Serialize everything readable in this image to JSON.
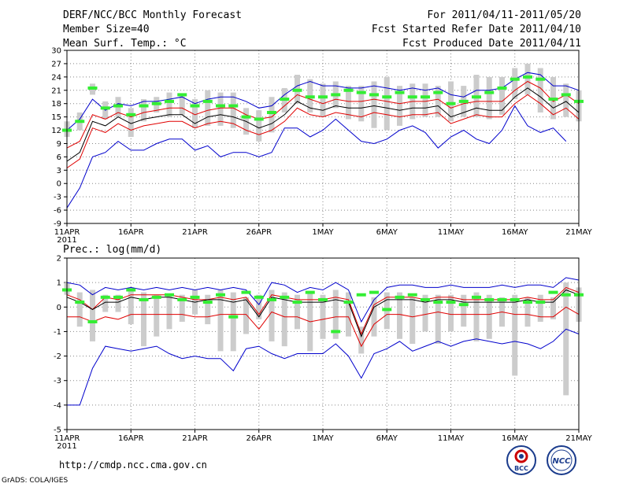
{
  "header": {
    "title": "DERF/NCC/BCC Monthly Forecast",
    "member_size": "Member Size=40",
    "variable1": "Mean Surf. Temp.: °C",
    "for_range": "For 2011/04/11-2011/05/20",
    "fcst_started": "Fcst Started Refer Date 2011/04/10",
    "fcst_produced": "Fcst Produced Date 2011/04/11"
  },
  "footer": {
    "url": "http://cmdp.ncc.cma.gov.cn",
    "grads": "GrADS: COLA/IGES",
    "logo_bcc": "BCC",
    "logo_ncc": "NCC"
  },
  "x_tick_labels": [
    "11APR",
    "16APR",
    "21APR",
    "26APR",
    "1MAY",
    "6MAY",
    "11MAY",
    "16MAY",
    "21MAY"
  ],
  "x_year": "2011",
  "colors": {
    "max_min": "#0000cc",
    "spread": "#e00000",
    "mean": "#000000",
    "obs": "#33ee33",
    "box": "#cccccc"
  },
  "chart_data": [
    {
      "type": "line",
      "title": "Mean Surf. Temp.: °C",
      "xlabel": "",
      "ylabel": "",
      "x_days": 40,
      "ylim": [
        -9,
        30
      ],
      "yticks": [
        -9,
        -6,
        -3,
        0,
        3,
        6,
        9,
        12,
        15,
        18,
        21,
        24,
        27,
        30
      ],
      "series": [
        {
          "name": "max",
          "values": [
            12,
            14.5,
            19,
            16.5,
            18,
            17.5,
            18.5,
            18.5,
            19,
            19.5,
            18,
            19,
            19.5,
            19.5,
            18.5,
            17,
            17.5,
            20,
            22,
            23,
            22,
            22,
            21.5,
            21.5,
            22,
            21.5,
            21,
            21.5,
            21,
            21.5,
            20,
            19.5,
            21,
            21,
            21.5,
            23.5,
            25,
            24.5,
            22,
            22,
            21
          ]
        },
        {
          "name": "upper",
          "values": [
            8,
            9.5,
            15.5,
            14.5,
            16,
            15,
            16,
            16.5,
            17,
            17,
            15.5,
            16.5,
            17,
            17,
            15.5,
            14.5,
            15,
            17.5,
            20,
            19,
            18,
            19,
            18.5,
            18.5,
            19,
            18.5,
            18,
            18.5,
            18.5,
            19,
            17,
            18,
            18.5,
            18.5,
            18.5,
            21,
            23,
            21.5,
            18.5,
            20,
            18
          ]
        },
        {
          "name": "mean",
          "values": [
            5,
            7,
            14,
            13,
            15,
            13.5,
            14.5,
            15,
            15.5,
            15.5,
            13.5,
            15,
            15.5,
            15,
            14,
            12.5,
            13.5,
            15.5,
            18.5,
            17,
            16.5,
            17.5,
            17,
            17,
            17.5,
            17,
            16.5,
            17,
            17,
            17.5,
            15,
            16,
            17,
            16.5,
            16.5,
            19.5,
            21.5,
            19.5,
            17,
            18.5,
            16
          ]
        },
        {
          "name": "lower",
          "values": [
            3.5,
            5.5,
            12.5,
            11.5,
            13.5,
            12,
            13,
            13.5,
            14,
            14,
            12.5,
            13.5,
            14,
            13.5,
            12,
            11,
            12,
            14,
            17,
            15.5,
            15,
            16,
            15.5,
            15,
            16,
            15.5,
            15,
            15.5,
            15.5,
            16,
            13.5,
            14.5,
            15.5,
            15,
            15,
            18,
            20,
            18,
            15.5,
            17,
            14.5
          ]
        },
        {
          "name": "min",
          "values": [
            -5.5,
            -1,
            6,
            7,
            9.5,
            7.5,
            7.5,
            9,
            10,
            10,
            7.5,
            8.5,
            6,
            7,
            7,
            6,
            7,
            12.5,
            12.5,
            10.5,
            12,
            14.5,
            12,
            9.5,
            9,
            10,
            12,
            13,
            11.5,
            8,
            10.5,
            12,
            10,
            9,
            12,
            17.5,
            13,
            11.5,
            12.5,
            9.5
          ]
        }
      ],
      "boxes": [
        [
          10.5,
          14
        ],
        [
          12,
          16
        ],
        [
          20,
          22.5
        ],
        [
          14.5,
          18.5
        ],
        [
          15,
          19.5
        ],
        [
          10.5,
          17
        ],
        [
          14,
          19
        ],
        [
          16,
          19.5
        ],
        [
          15,
          20.5
        ],
        [
          15.5,
          20
        ],
        [
          12.5,
          19
        ],
        [
          13,
          21
        ],
        [
          13,
          20.5
        ],
        [
          12.5,
          20.5
        ],
        [
          11,
          17
        ],
        [
          9.5,
          16.5
        ],
        [
          11.5,
          19.5
        ],
        [
          16,
          21.5
        ],
        [
          18,
          24.5
        ],
        [
          16,
          23.5
        ],
        [
          15,
          22.5
        ],
        [
          17,
          23
        ],
        [
          14.5,
          22
        ],
        [
          14,
          22
        ],
        [
          12.5,
          23
        ],
        [
          12,
          24
        ],
        [
          13,
          22
        ],
        [
          14.5,
          22.5
        ],
        [
          15,
          22.5
        ],
        [
          15,
          22
        ],
        [
          14,
          23
        ],
        [
          15,
          22
        ],
        [
          15,
          24.5
        ],
        [
          14.5,
          24
        ],
        [
          15.5,
          24
        ],
        [
          19,
          26
        ],
        [
          20,
          27
        ],
        [
          16,
          26
        ],
        [
          14.5,
          24
        ],
        [
          15,
          22.5
        ],
        [
          14,
          21
        ]
      ],
      "obs": [
        12,
        14,
        21.5,
        17,
        17.5,
        15.5,
        17.5,
        18,
        18.5,
        20,
        17.5,
        18.5,
        17.5,
        17.5,
        15,
        14.5,
        16,
        19,
        21,
        19.5,
        19.5,
        20,
        21,
        20.5,
        20,
        19.5,
        20.5,
        19.5,
        19.5,
        20.5,
        18,
        18.5,
        19.5,
        20.5,
        21.5,
        23.5,
        24,
        23.5,
        19,
        20,
        18.5
      ]
    },
    {
      "type": "line",
      "title": "Prec.: log(mm/d)",
      "xlabel": "",
      "ylabel": "",
      "x_days": 40,
      "ylim": [
        -5,
        2
      ],
      "yticks": [
        -5,
        -4,
        -3,
        -2,
        -1,
        0,
        1,
        2
      ],
      "series": [
        {
          "name": "max",
          "values": [
            1,
            0.9,
            0.5,
            0.8,
            0.7,
            0.8,
            0.7,
            0.8,
            0.7,
            0.8,
            0.7,
            0.8,
            0.7,
            0.8,
            0.7,
            0.1,
            1,
            0.9,
            0.6,
            0.8,
            0.7,
            1,
            0.7,
            -0.6,
            0.3,
            0.8,
            0.9,
            0.9,
            0.8,
            0.8,
            0.9,
            0.8,
            0.8,
            0.8,
            0.9,
            0.8,
            0.9,
            0.9,
            0.8,
            1.2,
            1.1
          ]
        },
        {
          "name": "upper",
          "values": [
            0.5,
            0.3,
            -0.1,
            0.4,
            0.3,
            0.5,
            0.5,
            0.5,
            0.5,
            0.4,
            0.3,
            0.3,
            0.4,
            0.3,
            0.4,
            -0.3,
            0.5,
            0.4,
            0.3,
            0.3,
            0.3,
            0.4,
            0.3,
            -1.1,
            0.1,
            0.4,
            0.4,
            0.4,
            0.3,
            0.4,
            0.4,
            0.3,
            0.3,
            0.3,
            0.3,
            0.3,
            0.4,
            0.3,
            0.3,
            0.8,
            0.6
          ]
        },
        {
          "name": "mean",
          "values": [
            0.4,
            0.2,
            -0.1,
            0.2,
            0.2,
            0.4,
            0.3,
            0.4,
            0.4,
            0.3,
            0.2,
            0.3,
            0.3,
            0.2,
            0.3,
            -0.4,
            0.4,
            0.3,
            0.2,
            0.2,
            0.2,
            0.3,
            0.2,
            -1.2,
            0,
            0.3,
            0.3,
            0.3,
            0.2,
            0.3,
            0.3,
            0.2,
            0.2,
            0.2,
            0.2,
            0.2,
            0.3,
            0.2,
            0.2,
            0.7,
            0.5
          ]
        },
        {
          "name": "lower",
          "values": [
            -0.4,
            -0.4,
            -0.6,
            -0.4,
            -0.5,
            -0.3,
            -0.3,
            -0.3,
            -0.3,
            -0.3,
            -0.4,
            -0.4,
            -0.3,
            -0.3,
            -0.3,
            -0.9,
            -0.2,
            -0.4,
            -0.4,
            -0.6,
            -0.5,
            -0.4,
            -0.4,
            -1.6,
            -0.7,
            -0.3,
            -0.3,
            -0.4,
            -0.3,
            -0.2,
            -0.3,
            -0.3,
            -0.3,
            -0.3,
            -0.2,
            -0.3,
            -0.3,
            -0.4,
            -0.4,
            0,
            -0.3
          ]
        },
        {
          "name": "min",
          "values": [
            -4,
            -4,
            -2.5,
            -1.6,
            -1.7,
            -1.8,
            -1.7,
            -1.6,
            -1.9,
            -2.1,
            -2.0,
            -2.1,
            -2.1,
            -2.6,
            -1.7,
            -1.6,
            -1.9,
            -2.1,
            -1.9,
            -1.9,
            -1.9,
            -1.5,
            -2.0,
            -2.9,
            -1.9,
            -1.7,
            -1.4,
            -1.8,
            -1.6,
            -1.4,
            -1.6,
            -1.4,
            -1.3,
            -1.4,
            -1.5,
            -1.4,
            -1.5,
            -1.7,
            -1.4,
            -0.9,
            -1.1
          ]
        }
      ],
      "boxes": [
        [
          0.5,
          1
        ],
        [
          -0.8,
          0.6
        ],
        [
          -1.4,
          0.7
        ],
        [
          -0.2,
          0.5
        ],
        [
          -0.2,
          0.5
        ],
        [
          -0.7,
          0.8
        ],
        [
          -1.6,
          0.6
        ],
        [
          -1.2,
          0.5
        ],
        [
          -0.9,
          0.5
        ],
        [
          -0.6,
          0.5
        ],
        [
          -0.3,
          0.7
        ],
        [
          -0.7,
          0.5
        ],
        [
          -1.8,
          0.7
        ],
        [
          -1.8,
          0.6
        ],
        [
          -1.1,
          0.4
        ],
        [
          -0.5,
          0.5
        ],
        [
          -1.4,
          0.7
        ],
        [
          -1.6,
          0.6
        ],
        [
          -0.9,
          0.5
        ],
        [
          -1.8,
          0.6
        ],
        [
          -1.3,
          0.5
        ],
        [
          -1.3,
          0.7
        ],
        [
          -1.2,
          0.6
        ],
        [
          -1.9,
          -0.8
        ],
        [
          -1.2,
          0.4
        ],
        [
          -0.9,
          0.6
        ],
        [
          -1.3,
          0.6
        ],
        [
          -1.5,
          0.4
        ],
        [
          -1.0,
          0.5
        ],
        [
          -1.5,
          0.5
        ],
        [
          -1.0,
          0.5
        ],
        [
          -0.8,
          0.5
        ],
        [
          -1.4,
          0.6
        ],
        [
          -1.3,
          0.5
        ],
        [
          -0.8,
          0.4
        ],
        [
          -2.8,
          0.5
        ],
        [
          -0.8,
          0.4
        ],
        [
          -0.6,
          0.5
        ],
        [
          -0.5,
          0.4
        ],
        [
          -3.6,
          1.0
        ],
        [
          -0.6,
          0.8
        ]
      ],
      "obs": [
        0.7,
        0.2,
        -0.6,
        0.4,
        0.4,
        0.7,
        0.3,
        0.4,
        0.5,
        0.3,
        0.4,
        0.2,
        0.5,
        -0.4,
        0.6,
        0.4,
        0.3,
        0.4,
        0.2,
        0.6,
        0.3,
        -1.0,
        0.2,
        0.5,
        0.6,
        -0.1,
        0.4,
        0.5,
        0.3,
        0.2,
        0.2,
        0.1,
        0.4,
        0.3,
        0.3,
        0.3,
        0.2,
        0.2,
        0.6,
        0.5,
        0.5
      ]
    }
  ]
}
